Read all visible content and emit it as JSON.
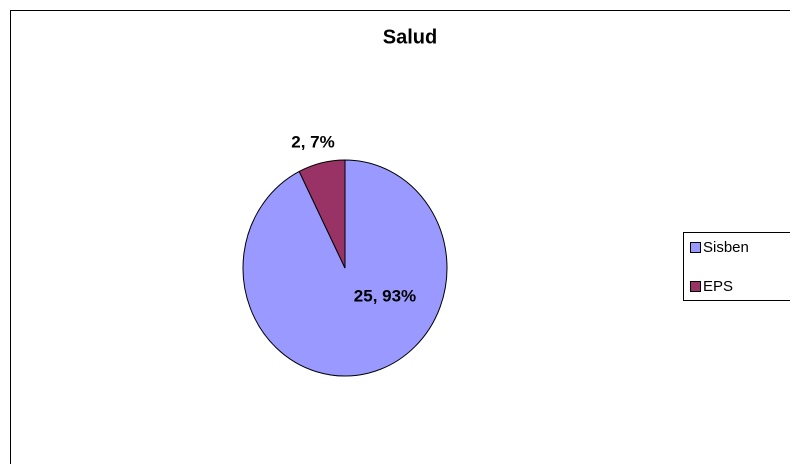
{
  "chart_data": {
    "type": "pie",
    "title": "Salud",
    "categories": [
      "Sisben",
      "EPS"
    ],
    "values": [
      25,
      2
    ],
    "value_labels": [
      "25, 93%",
      "2, 7%"
    ],
    "colors": [
      "#9999ff",
      "#993366"
    ],
    "legend": "right"
  }
}
